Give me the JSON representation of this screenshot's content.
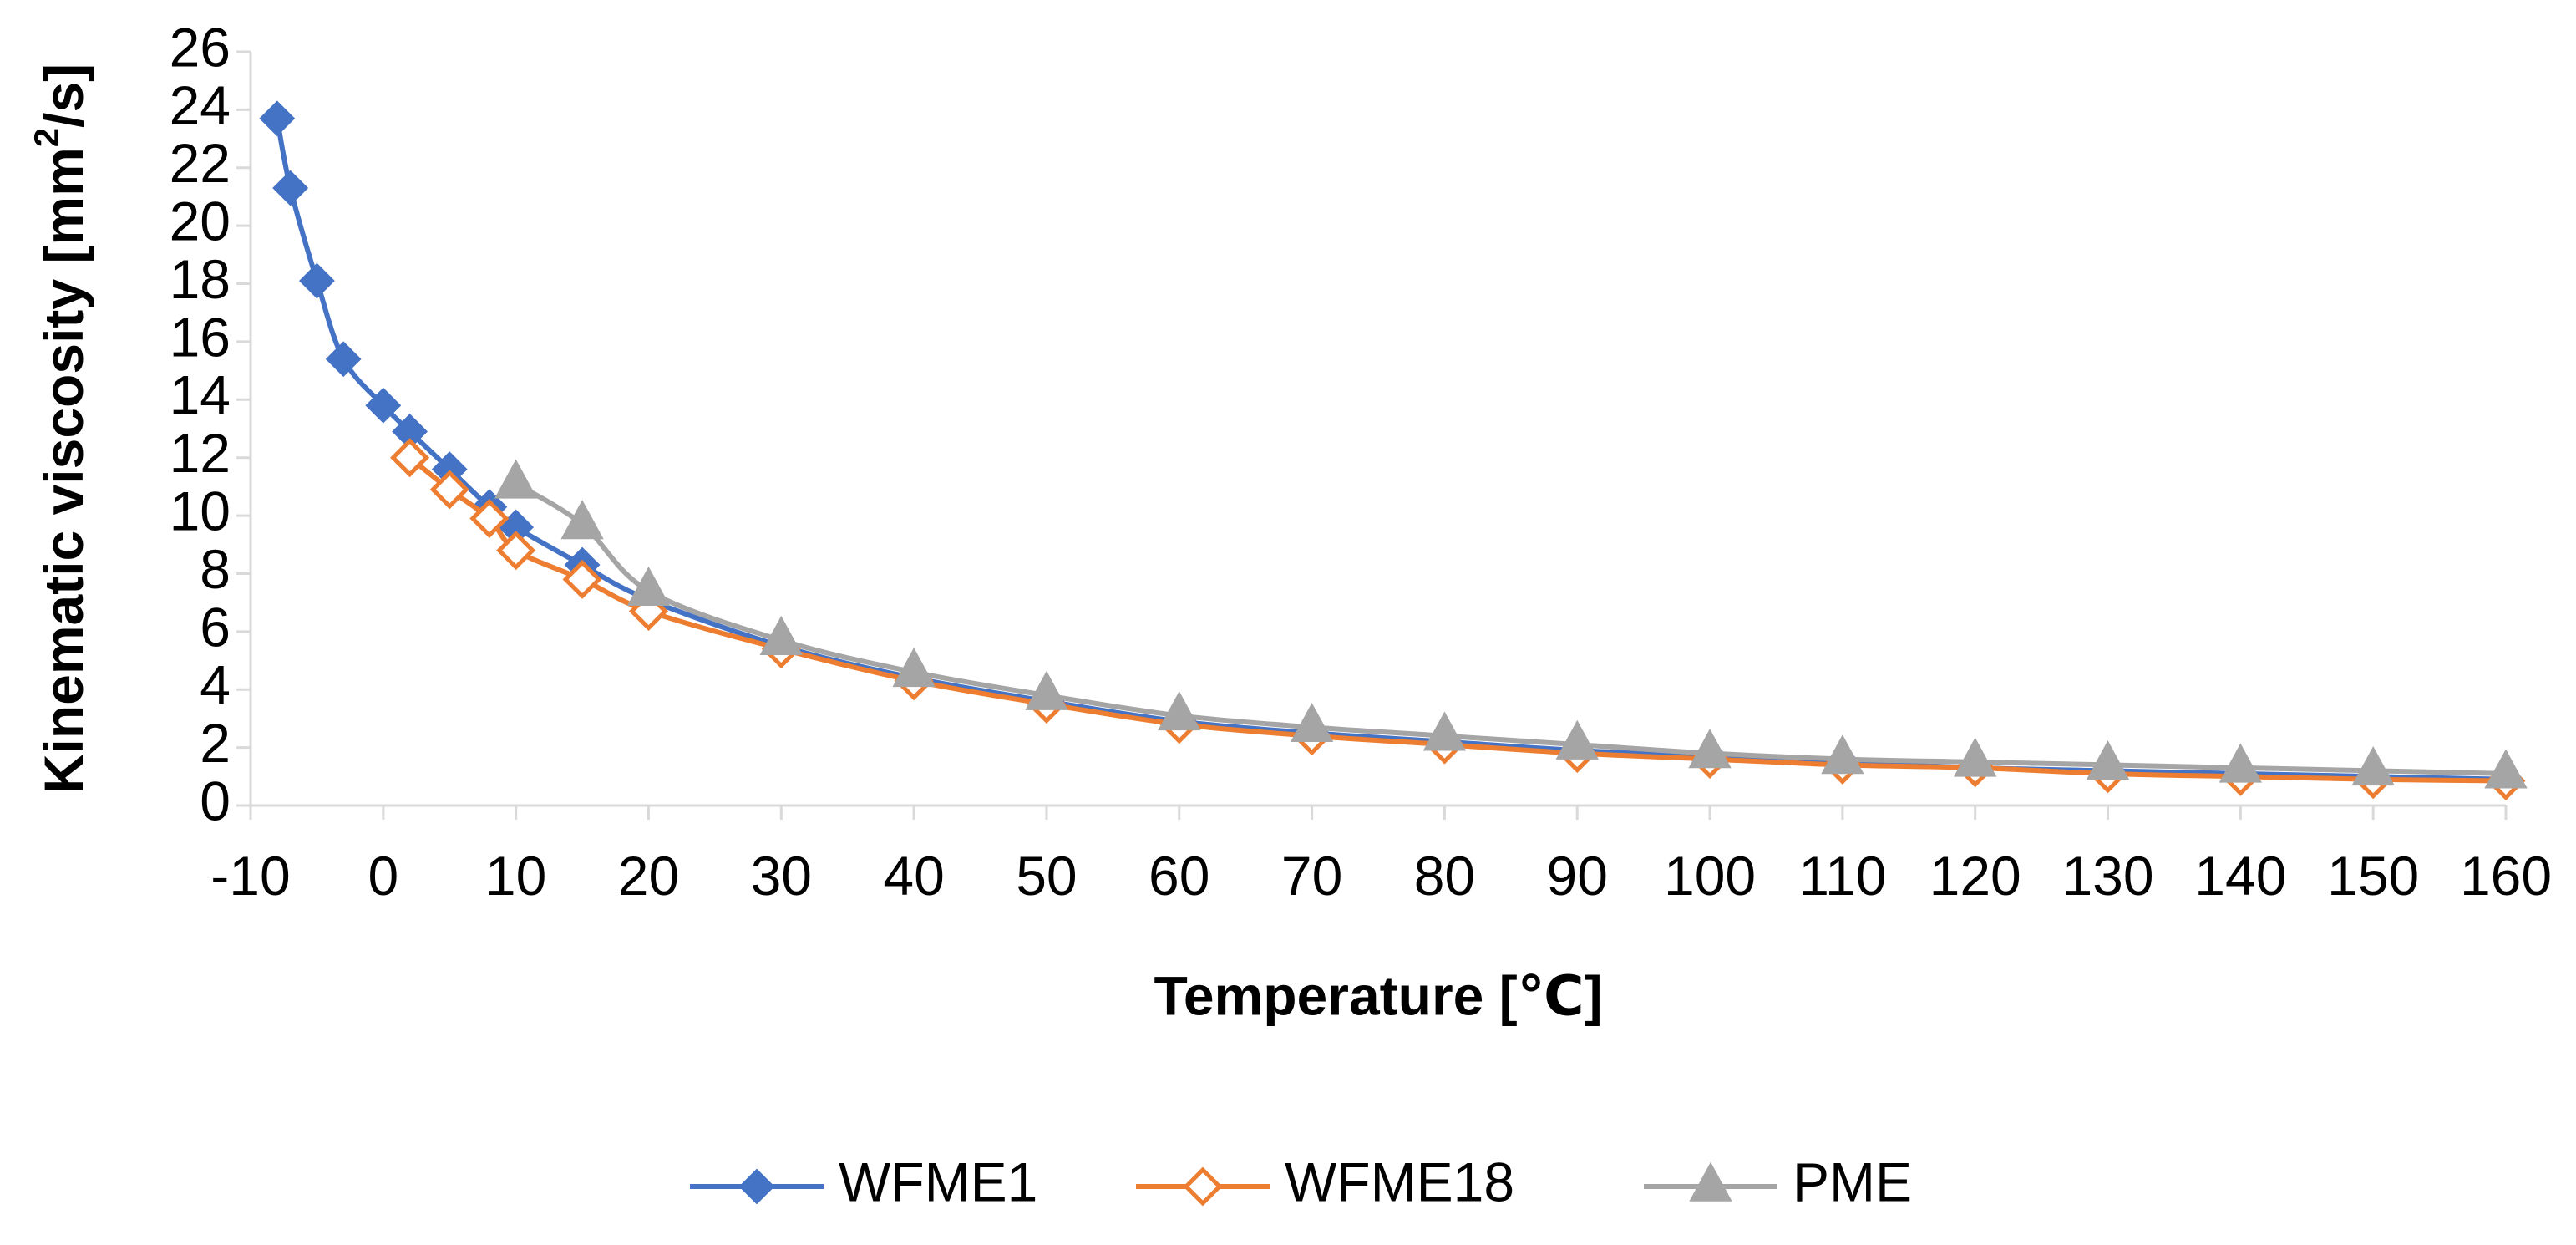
{
  "chart_data": {
    "type": "line",
    "title": "",
    "xlabel": "Temperature [℃]",
    "ylabel_main": "Kinematic viscosity [mm",
    "ylabel_sup": "2",
    "ylabel_tail": "/s]",
    "xlim": [
      -10,
      160
    ],
    "ylim": [
      0,
      26
    ],
    "x_ticks": [
      -10,
      0,
      10,
      20,
      30,
      40,
      50,
      60,
      70,
      80,
      90,
      100,
      110,
      120,
      130,
      140,
      150,
      160
    ],
    "y_ticks": [
      0,
      2,
      4,
      6,
      8,
      10,
      12,
      14,
      16,
      18,
      20,
      22,
      24,
      26
    ],
    "grid": false,
    "legend_position": "bottom",
    "series": [
      {
        "name": "WFME1",
        "color": "#4472C4",
        "marker": "diamond-filled",
        "x": [
          -8,
          -7,
          -5,
          -3,
          0,
          2,
          5,
          8,
          10,
          15,
          20,
          30,
          40,
          50,
          60,
          70,
          80,
          90,
          100,
          110,
          120,
          130,
          140,
          150,
          160
        ],
        "y": [
          23.7,
          21.3,
          18.1,
          15.4,
          13.8,
          12.9,
          11.6,
          10.3,
          9.6,
          8.3,
          7.1,
          5.5,
          4.4,
          3.6,
          2.9,
          2.5,
          2.2,
          1.9,
          1.7,
          1.5,
          1.3,
          1.2,
          1.1,
          1.0,
          0.9
        ]
      },
      {
        "name": "WFME18",
        "color": "#ED7D31",
        "marker": "diamond-open",
        "x": [
          2,
          5,
          8,
          10,
          15,
          20,
          30,
          40,
          50,
          60,
          70,
          80,
          90,
          100,
          110,
          120,
          130,
          140,
          150,
          160
        ],
        "y": [
          12.0,
          10.9,
          9.9,
          8.8,
          7.8,
          6.7,
          5.4,
          4.3,
          3.5,
          2.8,
          2.4,
          2.1,
          1.8,
          1.6,
          1.4,
          1.3,
          1.1,
          1.0,
          0.9,
          0.85
        ]
      },
      {
        "name": "PME",
        "color": "#A5A5A5",
        "marker": "triangle",
        "x": [
          10,
          15,
          20,
          30,
          40,
          50,
          60,
          70,
          80,
          90,
          100,
          110,
          120,
          130,
          140,
          150,
          160
        ],
        "y": [
          11.1,
          9.7,
          7.4,
          5.7,
          4.6,
          3.8,
          3.1,
          2.7,
          2.4,
          2.1,
          1.8,
          1.6,
          1.5,
          1.4,
          1.3,
          1.2,
          1.1
        ]
      }
    ]
  }
}
